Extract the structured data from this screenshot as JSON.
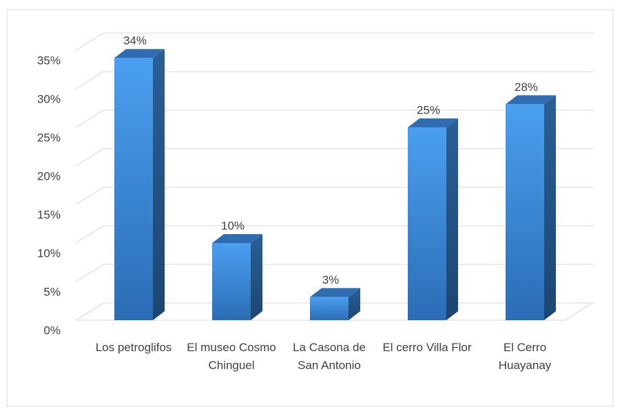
{
  "chart_data": {
    "type": "bar3d",
    "categories": [
      "Los petroglifos",
      "El museo Cosmo Chinguel",
      "La Casona de San Antonio",
      "El cerro Villa Flor",
      "El Cerro Huayanay"
    ],
    "values": [
      34,
      10,
      3,
      25,
      28
    ],
    "value_labels": [
      "34%",
      "10%",
      "3%",
      "25%",
      "28%"
    ],
    "color": "#3d8fdf",
    "ylim": [
      0,
      35
    ],
    "yticks": [
      {
        "value": 0,
        "label": "0%"
      },
      {
        "value": 5,
        "label": "5%"
      },
      {
        "value": 10,
        "label": "10%"
      },
      {
        "value": 15,
        "label": "15%"
      },
      {
        "value": 20,
        "label": "20%"
      },
      {
        "value": 25,
        "label": "25%"
      },
      {
        "value": 30,
        "label": "30%"
      },
      {
        "value": 35,
        "label": "35%"
      }
    ],
    "grid": true
  }
}
